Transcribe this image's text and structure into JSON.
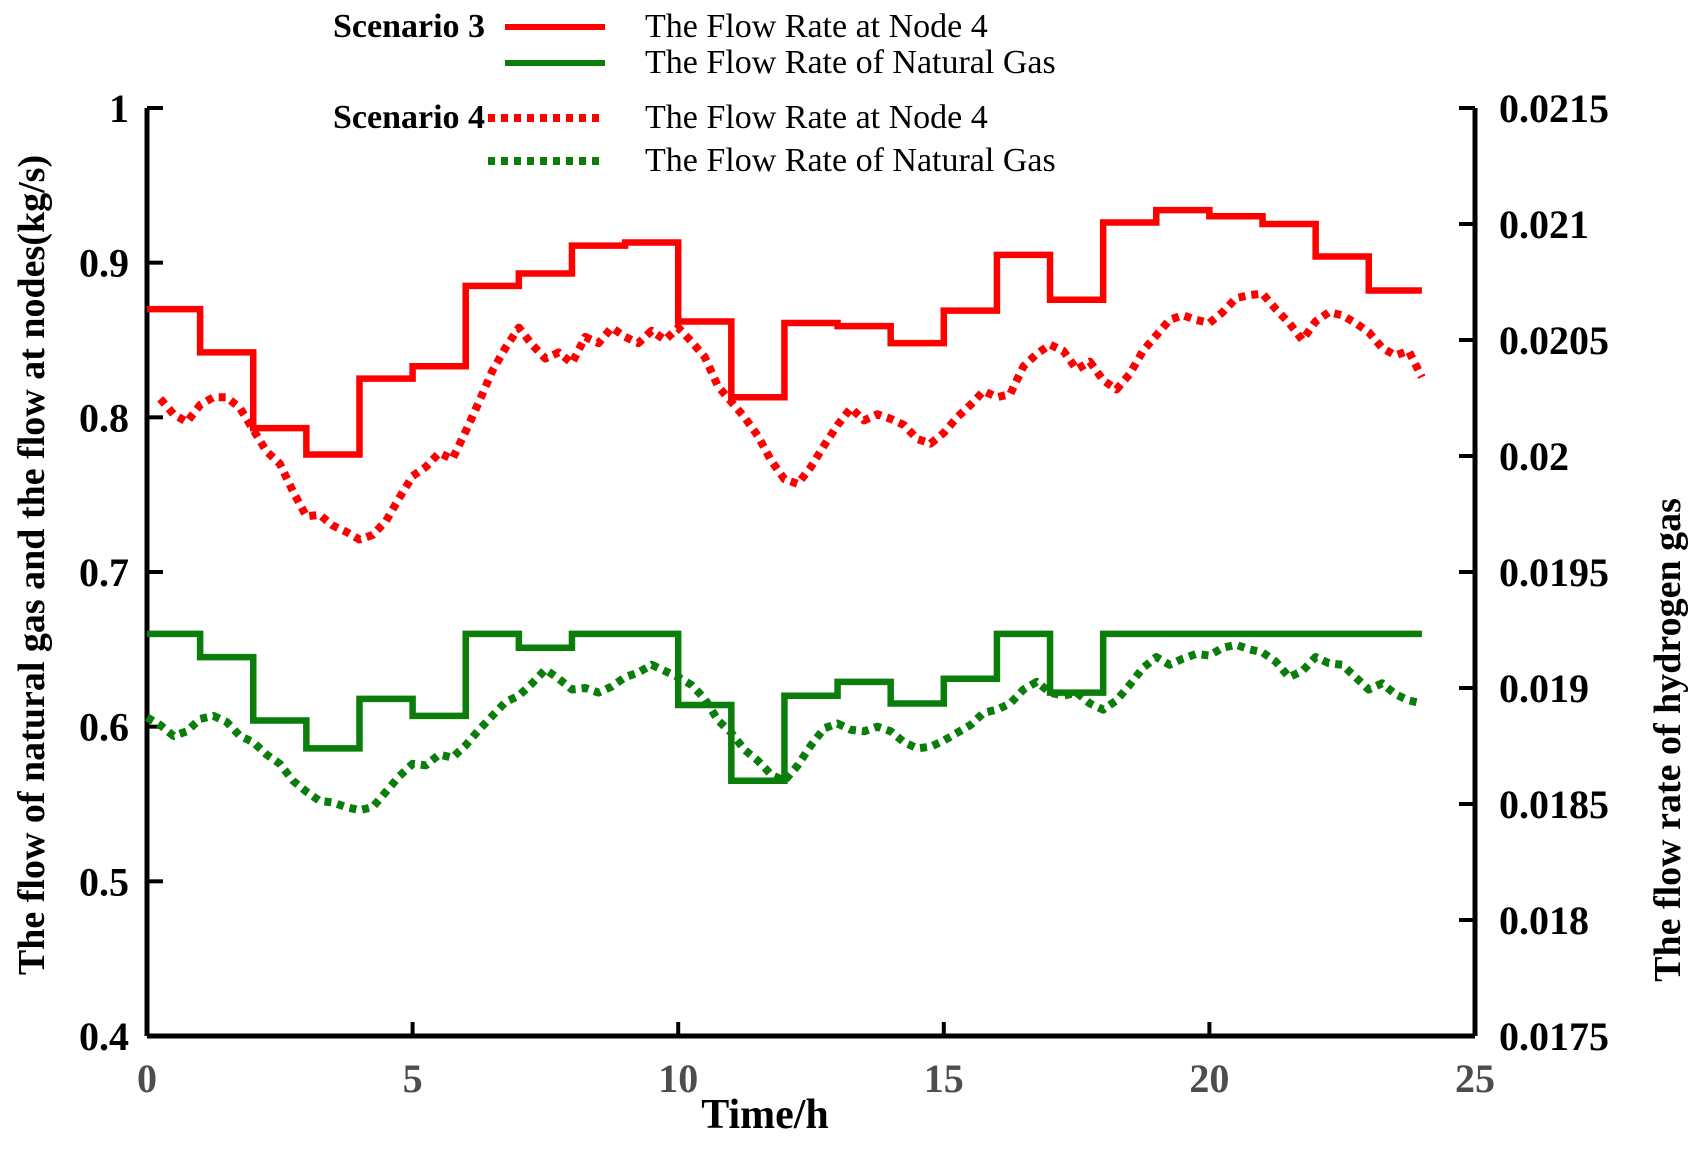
{
  "figure": {
    "background": "#ffffff"
  },
  "colors": {
    "red": "#ff0000",
    "green": "#0a7d0a",
    "axis": "#000000",
    "x_tick_label": "#4d4d4d"
  },
  "legend": {
    "groups": [
      {
        "name": "Scenario 3",
        "items": [
          {
            "label": "The Flow Rate at Node 4",
            "color": "#ff0000",
            "style": "solid"
          },
          {
            "label": "The Flow Rate of Natural Gas",
            "color": "#0a7d0a",
            "style": "solid"
          }
        ]
      },
      {
        "name": "Scenario 4",
        "items": [
          {
            "label": "The Flow Rate at Node 4",
            "color": "#ff0000",
            "style": "dotted"
          },
          {
            "label": "The Flow Rate of Natural Gas",
            "color": "#0a7d0a",
            "style": "dotted"
          }
        ]
      }
    ]
  },
  "chart_data": {
    "type": "line",
    "title": "",
    "xlabel": "Time/h",
    "xlim": [
      0,
      25
    ],
    "x_tick_values": [
      0,
      5,
      10,
      15,
      20,
      25
    ],
    "x_tick_labels": [
      "0",
      "5",
      "10",
      "15",
      "20",
      "25"
    ],
    "grid": false,
    "legend_position": "top",
    "left_axis": {
      "label": "The flow of natural gas and the flow at nodes(kg/s)",
      "lim": [
        0.4,
        1.0
      ],
      "tick_values": [
        1.0,
        0.9,
        0.8,
        0.7,
        0.6,
        0.5,
        0.4
      ],
      "tick_labels": [
        "1",
        "0.9",
        "0.8",
        "0.7",
        "0.6",
        "0.5",
        "0.4"
      ]
    },
    "right_axis": {
      "label": "The flow rate of hydrogen gas",
      "lim": [
        0.0175,
        0.0215
      ],
      "tick_values": [
        0.0215,
        0.021,
        0.0205,
        0.02,
        0.0195,
        0.019,
        0.0185,
        0.018,
        0.0175
      ],
      "tick_labels": [
        "0.0215",
        "0.021",
        "0.0205",
        "0.02",
        "0.0195",
        "0.019",
        "0.0185",
        "0.018",
        "0.0175"
      ]
    },
    "series": [
      {
        "name": "Scenario 3 - The Flow Rate at Node 4",
        "scenario": "Scenario 3",
        "color": "#ff0000",
        "line": "solid",
        "step": true,
        "axis": "left",
        "hours": [
          0,
          1,
          2,
          3,
          4,
          5,
          6,
          7,
          8,
          9,
          10,
          11,
          12,
          13,
          14,
          15,
          16,
          17,
          18,
          19,
          20,
          21,
          22,
          23
        ],
        "values": [
          0.87,
          0.842,
          0.793,
          0.776,
          0.825,
          0.833,
          0.885,
          0.893,
          0.911,
          0.913,
          0.862,
          0.813,
          0.861,
          0.859,
          0.848,
          0.869,
          0.905,
          0.876,
          0.926,
          0.934,
          0.93,
          0.925,
          0.904,
          0.882
        ]
      },
      {
        "name": "Scenario 3 - The Flow Rate of Natural Gas",
        "scenario": "Scenario 3",
        "color": "#0a7d0a",
        "line": "solid",
        "step": true,
        "axis": "left",
        "hours": [
          0,
          1,
          2,
          3,
          4,
          5,
          6,
          7,
          8,
          9,
          10,
          11,
          12,
          13,
          14,
          15,
          16,
          17,
          18,
          19,
          20,
          21,
          22,
          23
        ],
        "values": [
          0.66,
          0.645,
          0.604,
          0.586,
          0.618,
          0.607,
          0.66,
          0.651,
          0.66,
          0.66,
          0.614,
          0.565,
          0.62,
          0.629,
          0.615,
          0.631,
          0.66,
          0.622,
          0.66,
          0.66,
          0.66,
          0.66,
          0.66,
          0.66
        ]
      },
      {
        "name": "Scenario 4 - The Flow Rate at Node 4",
        "scenario": "Scenario 4",
        "color": "#ff0000",
        "line": "dotted",
        "step": false,
        "axis": "left",
        "x0": 0.25,
        "dx": 0.25,
        "values": [
          0.812,
          0.802,
          0.797,
          0.808,
          0.813,
          0.813,
          0.806,
          0.792,
          0.778,
          0.77,
          0.752,
          0.736,
          0.737,
          0.73,
          0.726,
          0.721,
          0.724,
          0.733,
          0.748,
          0.762,
          0.768,
          0.777,
          0.773,
          0.791,
          0.81,
          0.83,
          0.845,
          0.858,
          0.847,
          0.838,
          0.842,
          0.835,
          0.852,
          0.848,
          0.858,
          0.852,
          0.848,
          0.856,
          0.85,
          0.858,
          0.849,
          0.839,
          0.82,
          0.81,
          0.8,
          0.788,
          0.772,
          0.76,
          0.757,
          0.768,
          0.782,
          0.795,
          0.806,
          0.798,
          0.802,
          0.799,
          0.795,
          0.786,
          0.783,
          0.79,
          0.8,
          0.808,
          0.817,
          0.813,
          0.815,
          0.833,
          0.841,
          0.847,
          0.843,
          0.831,
          0.836,
          0.824,
          0.818,
          0.828,
          0.843,
          0.853,
          0.863,
          0.866,
          0.863,
          0.861,
          0.868,
          0.877,
          0.879,
          0.88,
          0.87,
          0.861,
          0.85,
          0.862,
          0.868,
          0.866,
          0.861,
          0.855,
          0.845,
          0.84,
          0.843,
          0.826
        ]
      },
      {
        "name": "Scenario 4 - The Flow Rate of Natural Gas",
        "scenario": "Scenario 4",
        "color": "#0a7d0a",
        "line": "dotted",
        "step": false,
        "axis": "left",
        "x0": 0.0,
        "dx": 0.25,
        "values": [
          0.606,
          0.601,
          0.594,
          0.597,
          0.605,
          0.607,
          0.603,
          0.594,
          0.59,
          0.582,
          0.576,
          0.565,
          0.558,
          0.552,
          0.551,
          0.548,
          0.546,
          0.548,
          0.558,
          0.568,
          0.576,
          0.575,
          0.582,
          0.58,
          0.588,
          0.598,
          0.607,
          0.616,
          0.62,
          0.628,
          0.637,
          0.631,
          0.624,
          0.625,
          0.622,
          0.626,
          0.632,
          0.635,
          0.64,
          0.636,
          0.632,
          0.627,
          0.618,
          0.604,
          0.596,
          0.585,
          0.578,
          0.569,
          0.565,
          0.575,
          0.588,
          0.599,
          0.602,
          0.598,
          0.597,
          0.6,
          0.597,
          0.59,
          0.586,
          0.587,
          0.591,
          0.596,
          0.601,
          0.609,
          0.611,
          0.615,
          0.624,
          0.629,
          0.622,
          0.62,
          0.622,
          0.615,
          0.611,
          0.617,
          0.627,
          0.638,
          0.645,
          0.64,
          0.644,
          0.647,
          0.646,
          0.651,
          0.653,
          0.65,
          0.648,
          0.642,
          0.632,
          0.636,
          0.645,
          0.641,
          0.64,
          0.632,
          0.624,
          0.628,
          0.621,
          0.617,
          0.615
        ]
      }
    ]
  }
}
